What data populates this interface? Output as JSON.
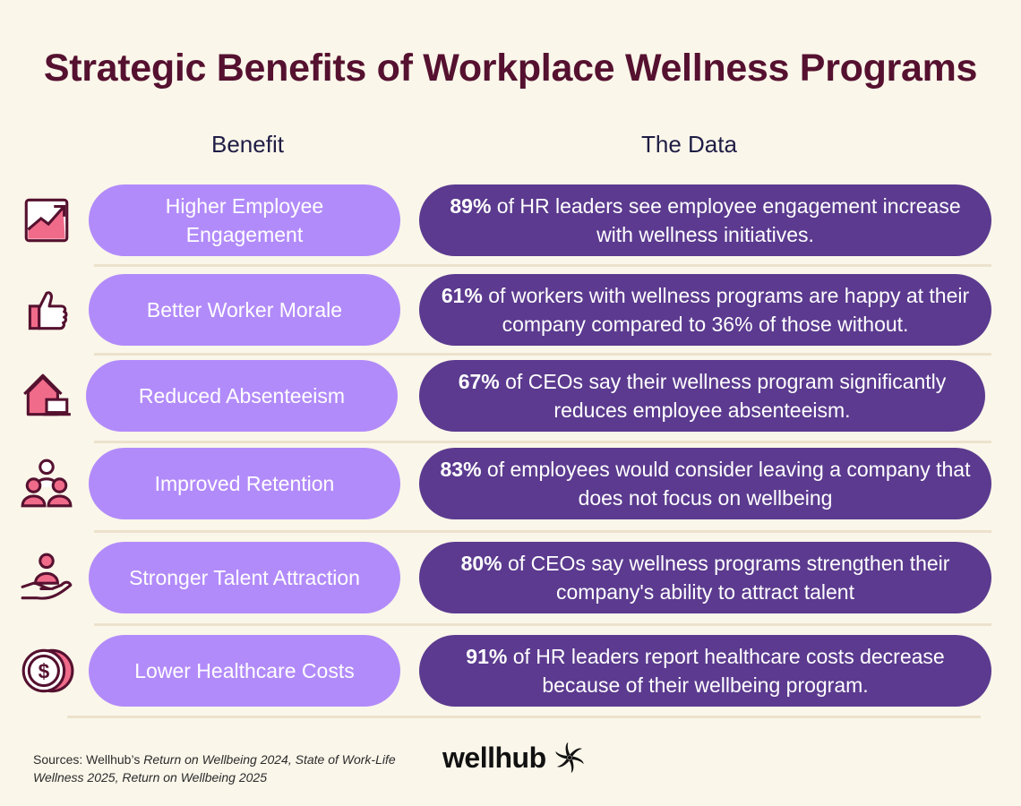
{
  "title": "Strategic Benefits of Workplace Wellness Programs",
  "columns": {
    "benefit": "Benefit",
    "data": "The Data"
  },
  "rows": [
    {
      "icon": "trending-up-chart-icon",
      "benefit": "Higher Employee Engagement",
      "stat": "89%",
      "text": " of HR leaders see employee engagement increase with wellness initiatives."
    },
    {
      "icon": "thumbs-up-icon",
      "benefit": "Better Worker Morale",
      "stat": "61%",
      "text": " of workers with wellness programs are happy at their company compared to 36% of those without."
    },
    {
      "icon": "home-laptop-icon",
      "benefit": "Reduced Absenteeism",
      "stat": "67%",
      "text": " of CEOs say their wellness program significantly reduces employee absenteeism."
    },
    {
      "icon": "people-group-icon",
      "benefit": "Improved Retention",
      "stat": "83%",
      "text": " of employees would consider leaving a company that does not focus on wellbeing"
    },
    {
      "icon": "hand-holding-person-icon",
      "benefit": "Stronger Talent Attraction",
      "stat": "80%",
      "text": " of CEOs say wellness programs strengthen their company's ability to attract talent"
    },
    {
      "icon": "dollar-coin-icon",
      "benefit": "Lower Healthcare Costs",
      "stat": "91%",
      "text": " of HR leaders report healthcare costs decrease because of their wellbeing program."
    }
  ],
  "sources": {
    "prefix": "Sources: Wellhub’s ",
    "italic": "Return on Wellbeing 2024, State of Work-Life Wellness 2025, Return on Wellbeing 2025"
  },
  "logo": {
    "text": "wellhub",
    "icon": "wellhub-swirl-logo-icon"
  },
  "colors": {
    "background": "#faf6ea",
    "title": "#55112f",
    "benefit_pill": "#b28bfa",
    "data_pill": "#5b3a8f",
    "icon_fill": "#f06b8a",
    "icon_stroke": "#55112f"
  }
}
